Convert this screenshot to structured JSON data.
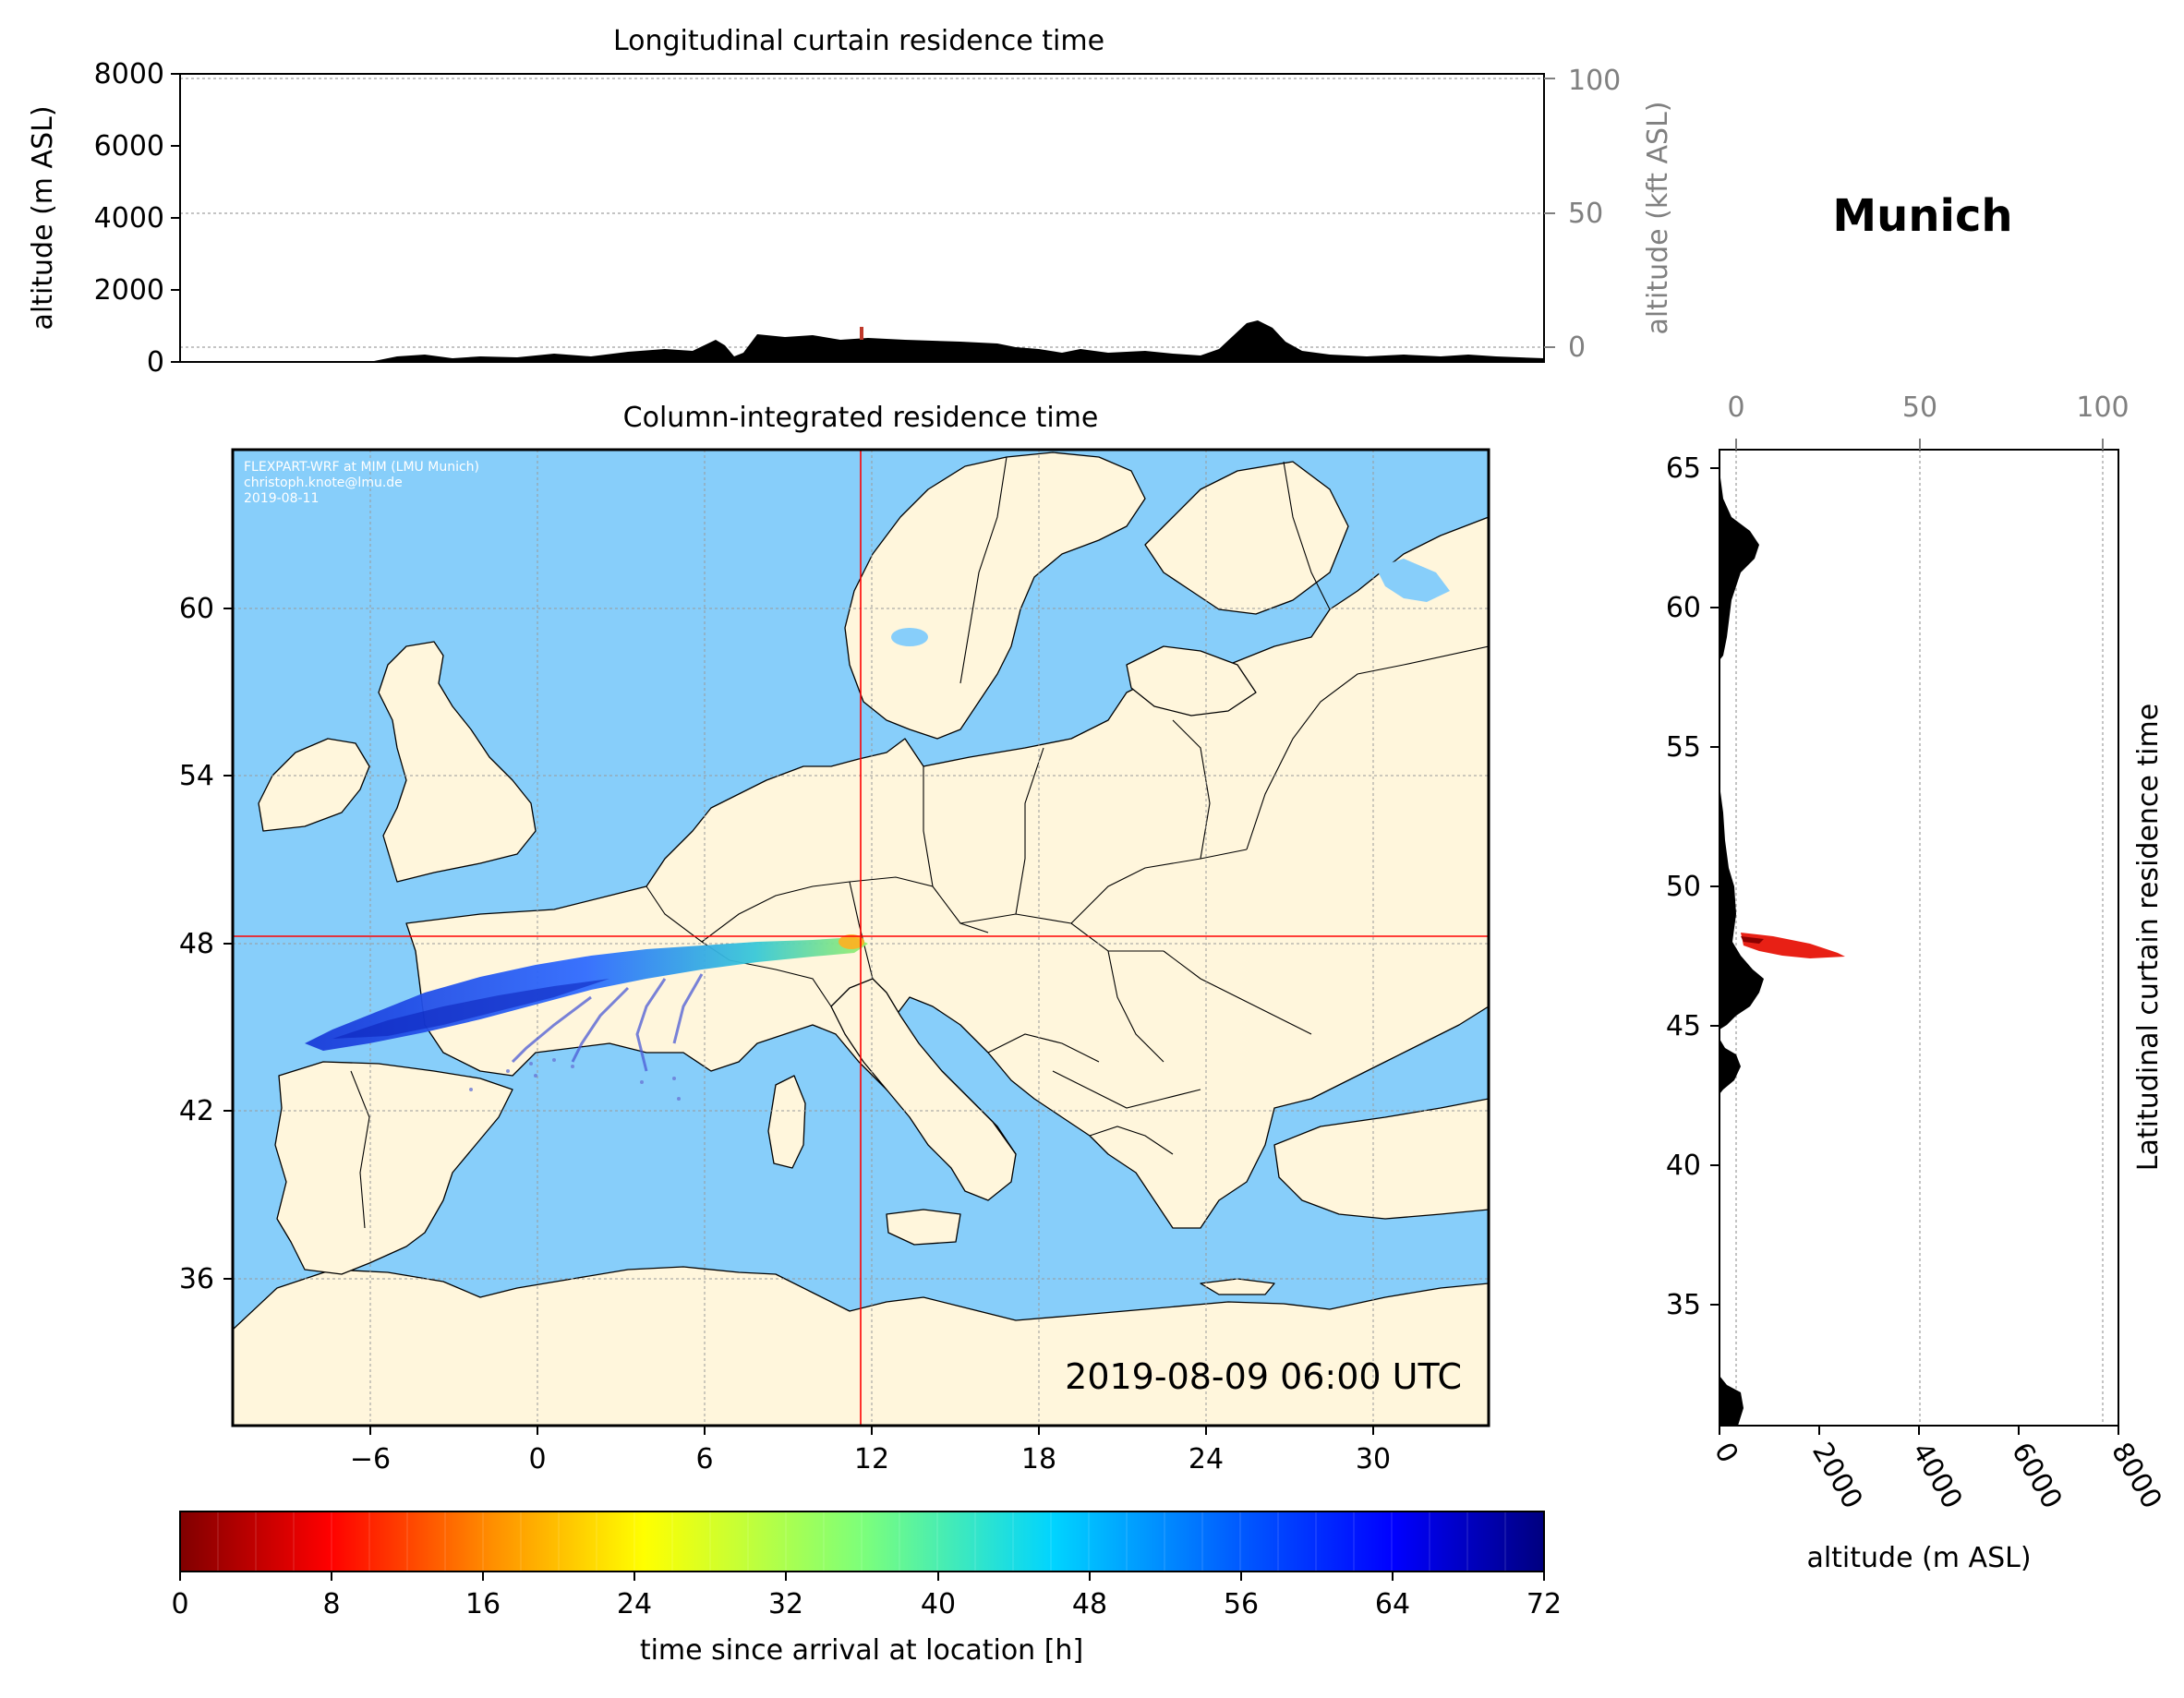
{
  "station": "Munich",
  "top_panel": {
    "title": "Longitudinal curtain residence time",
    "ylabel_left": "altitude (m ASL)",
    "ylabel_right": "altitude (kft ASL)",
    "yticks_left": [
      "0",
      "2000",
      "4000",
      "6000",
      "8000"
    ],
    "yticks_right": [
      "0",
      "50",
      "100"
    ]
  },
  "map_panel": {
    "title": "Column-integrated residence time",
    "credit_line1": "FLEXPART-WRF at MIM (LMU Munich)",
    "credit_line2": "christoph.knote@lmu.de",
    "credit_line3": "2019-08-11",
    "timestamp": "2019-08-09 06:00 UTC",
    "xticks": [
      "−6",
      "0",
      "6",
      "12",
      "18",
      "24",
      "30"
    ],
    "yticks": [
      "36",
      "42",
      "48",
      "54",
      "60"
    ],
    "release_lon": 11.6,
    "release_lat": 48.1
  },
  "right_panel": {
    "ylabel": "Latitudinal curtain residence time",
    "xlabel": "altitude (m ASL)",
    "xticks_bottom": [
      "0",
      "2000",
      "4000",
      "6000",
      "8000"
    ],
    "xticks_top": [
      "0",
      "50",
      "100"
    ],
    "yticks": [
      "35",
      "40",
      "45",
      "50",
      "55",
      "60",
      "65"
    ]
  },
  "colorbar": {
    "label": "time since arrival at location [h]",
    "ticks": [
      "0",
      "8",
      "16",
      "24",
      "32",
      "40",
      "48",
      "56",
      "64",
      "72"
    ],
    "min": 0,
    "max": 72,
    "colormap": "jet_r"
  },
  "colors": {
    "ocean": "#87CEFA",
    "land": "#FFF6DC",
    "terrain": "#000000",
    "crosshair": "#FF0000",
    "secondary_axis": "#808080"
  }
}
